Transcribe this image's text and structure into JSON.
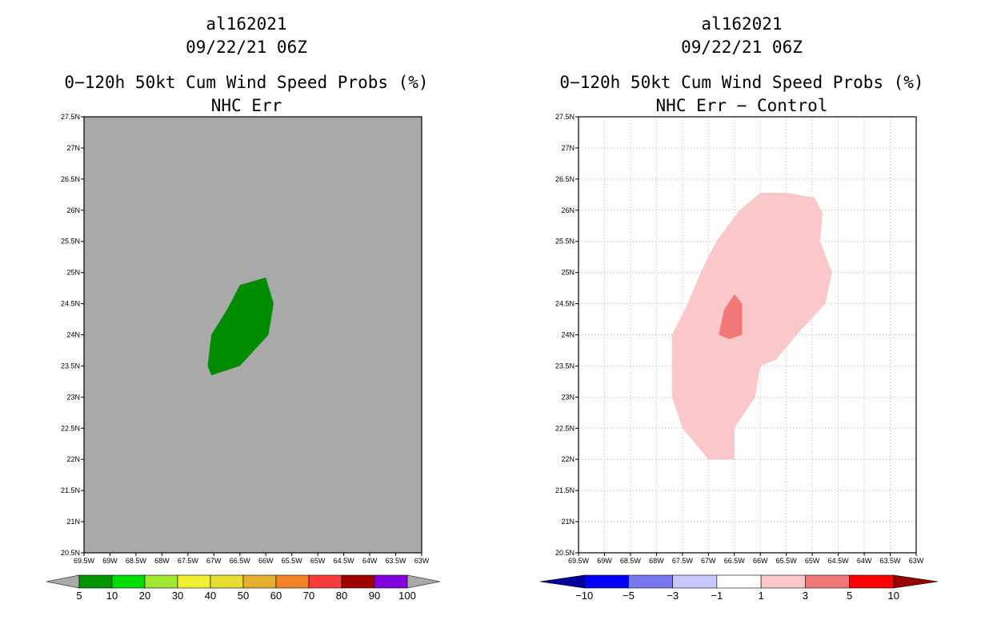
{
  "chart_data": [
    {
      "type": "heatmap",
      "storm_id": "al162021",
      "datetime": "09/22/21 06Z",
      "title": "0−120h 50kt Cum Wind Speed Probs (%)",
      "subtitle": "NHC Err",
      "background": "#a9a9a9",
      "grid": false,
      "xlim": [
        -69.5,
        -63.0
      ],
      "ylim": [
        20.5,
        27.5
      ],
      "x_tick_values": [
        -69.5,
        -69,
        -68.5,
        -68,
        -67.5,
        -67,
        -66.5,
        -66,
        -65.5,
        -65,
        -64.5,
        -64,
        -63.5,
        -63
      ],
      "x_tick_labels": [
        "69.5W",
        "69W",
        "68.5W",
        "68W",
        "67.5W",
        "67W",
        "66.5W",
        "66W",
        "65.5W",
        "65W",
        "64.5W",
        "64W",
        "63.5W",
        "63W"
      ],
      "y_tick_values": [
        20.5,
        21,
        21.5,
        22,
        22.5,
        23,
        23.5,
        24,
        24.5,
        25,
        25.5,
        26,
        26.5,
        27,
        27.5
      ],
      "y_tick_labels": [
        "20.5N",
        "21N",
        "21.5N",
        "22N",
        "22.5N",
        "23N",
        "23.5N",
        "24N",
        "24.5N",
        "25N",
        "25.5N",
        "26N",
        "26.5N",
        "27N",
        "27.5N"
      ],
      "regions": [
        {
          "level": "5-10",
          "color": "#008c00",
          "lonlat": [
            [
              -66.5,
              24.8
            ],
            [
              -66.0,
              24.92
            ],
            [
              -65.85,
              24.5
            ],
            [
              -65.95,
              24.0
            ],
            [
              -66.5,
              23.5
            ],
            [
              -67.05,
              23.35
            ],
            [
              -67.12,
              23.5
            ],
            [
              -67.05,
              24.0
            ],
            [
              -66.75,
              24.4
            ]
          ]
        }
      ],
      "colorbar": {
        "labels": [
          "5",
          "10",
          "20",
          "30",
          "40",
          "50",
          "60",
          "70",
          "80",
          "90",
          "100"
        ],
        "colors": [
          "#009600",
          "#00dc00",
          "#a0e632",
          "#f0f032",
          "#e6dc32",
          "#e6af2d",
          "#f08228",
          "#fa3c3c",
          "#a00000",
          "#8200dc"
        ],
        "end_colors": [
          "#a9a9a9",
          "#a9a9a9"
        ]
      }
    },
    {
      "type": "heatmap",
      "storm_id": "al162021",
      "datetime": "09/22/21 06Z",
      "title": "0−120h 50kt Cum Wind Speed Probs (%)",
      "subtitle": "NHC Err − Control",
      "background": "#ffffff",
      "grid": true,
      "xlim": [
        -69.5,
        -63.0
      ],
      "ylim": [
        20.5,
        27.5
      ],
      "x_tick_values": [
        -69.5,
        -69,
        -68.5,
        -68,
        -67.5,
        -67,
        -66.5,
        -66,
        -65.5,
        -65,
        -64.5,
        -64,
        -63.5,
        -63
      ],
      "x_tick_labels": [
        "69.5W",
        "69W",
        "68.5W",
        "68W",
        "67.5W",
        "67W",
        "66.5W",
        "66W",
        "65.5W",
        "65W",
        "64.5W",
        "64W",
        "63.5W",
        "63W"
      ],
      "y_tick_values": [
        20.5,
        21,
        21.5,
        22,
        22.5,
        23,
        23.5,
        24,
        24.5,
        25,
        25.5,
        26,
        26.5,
        27,
        27.5
      ],
      "y_tick_labels": [
        "20.5N",
        "21N",
        "21.5N",
        "22N",
        "22.5N",
        "23N",
        "23.5N",
        "24N",
        "24.5N",
        "25N",
        "25.5N",
        "26N",
        "26.5N",
        "27N",
        "27.5N"
      ],
      "regions": [
        {
          "level": "1-3",
          "color": "#fac8c8",
          "lonlat": [
            [
              -67.0,
              22.0
            ],
            [
              -66.5,
              22.0
            ],
            [
              -66.5,
              22.5
            ],
            [
              -66.1,
              23.0
            ],
            [
              -66.0,
              23.5
            ],
            [
              -65.7,
              23.6
            ],
            [
              -65.3,
              24.0
            ],
            [
              -64.75,
              24.5
            ],
            [
              -64.62,
              25.0
            ],
            [
              -64.85,
              25.5
            ],
            [
              -64.8,
              25.95
            ],
            [
              -64.95,
              26.2
            ],
            [
              -65.5,
              26.28
            ],
            [
              -66.0,
              26.28
            ],
            [
              -66.4,
              26.0
            ],
            [
              -66.85,
              25.5
            ],
            [
              -67.15,
              25.0
            ],
            [
              -67.4,
              24.5
            ],
            [
              -67.7,
              24.0
            ],
            [
              -67.7,
              23.0
            ],
            [
              -67.5,
              22.5
            ]
          ]
        },
        {
          "level": "3-5",
          "color": "#f07878",
          "lonlat": [
            [
              -66.5,
              24.65
            ],
            [
              -66.35,
              24.5
            ],
            [
              -66.35,
              24.0
            ],
            [
              -66.6,
              23.93
            ],
            [
              -66.8,
              24.0
            ],
            [
              -66.7,
              24.4
            ]
          ]
        }
      ],
      "colorbar": {
        "labels": [
          "−10",
          "−5",
          "−3",
          "−1",
          "1",
          "3",
          "5",
          "10"
        ],
        "colors": [
          "#0000ff",
          "#7878f0",
          "#c8c8fa",
          "#ffffff",
          "#fac8c8",
          "#f07878",
          "#ff0000"
        ],
        "end_colors": [
          "#000096",
          "#960000"
        ]
      }
    }
  ]
}
